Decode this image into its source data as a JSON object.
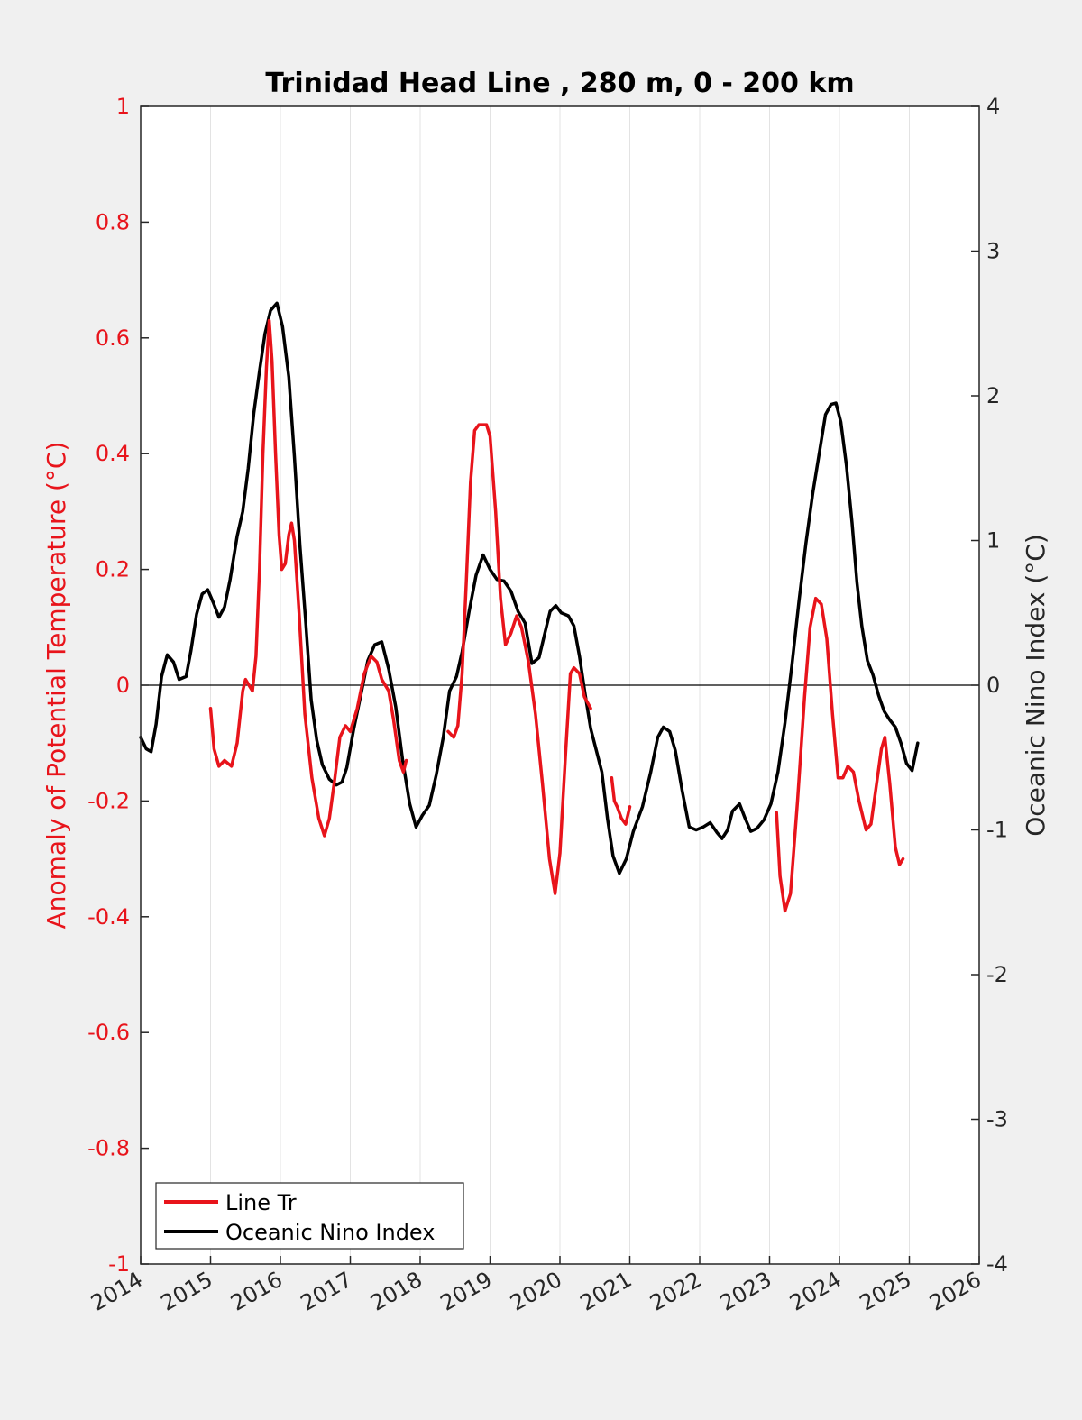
{
  "chart_data": {
    "type": "line",
    "title": "Trinidad Head Line , 280 m, 0 - 200 km",
    "x_ticks": [
      "2014",
      "2015",
      "2016",
      "2017",
      "2018",
      "2019",
      "2020",
      "2021",
      "2022",
      "2023",
      "2024",
      "2025",
      "2026"
    ],
    "xlim": [
      2014,
      2026
    ],
    "left_axis": {
      "label": "Anomaly of Potential Temperature (°C)",
      "ylim": [
        -1,
        1
      ],
      "ticks": [
        "1",
        "0.8",
        "0.6",
        "0.4",
        "0.2",
        "0",
        "-0.2",
        "-0.4",
        "-0.6",
        "-0.8",
        "-1"
      ],
      "color": "#e8141b"
    },
    "right_axis": {
      "label": "Oceanic Nino Index (°C)",
      "ylim": [
        -4,
        4
      ],
      "ticks": [
        "4",
        "3",
        "2",
        "1",
        "0",
        "-1",
        "-2",
        "-3",
        "-4"
      ],
      "color": "#262626"
    },
    "grid": "vertical",
    "legend_position": "bottom-left",
    "series": [
      {
        "name": "Line Tr",
        "axis": "left",
        "color": "#e8141b",
        "segments": [
          [
            [
              2015.0,
              -0.04
            ],
            [
              2015.05,
              -0.11
            ],
            [
              2015.12,
              -0.14
            ],
            [
              2015.2,
              -0.13
            ],
            [
              2015.3,
              -0.14
            ],
            [
              2015.38,
              -0.1
            ],
            [
              2015.46,
              -0.01
            ],
            [
              2015.5,
              0.01
            ],
            [
              2015.55,
              0.0
            ],
            [
              2015.6,
              -0.01
            ],
            [
              2015.65,
              0.05
            ],
            [
              2015.7,
              0.2
            ],
            [
              2015.75,
              0.4
            ],
            [
              2015.8,
              0.55
            ],
            [
              2015.84,
              0.63
            ],
            [
              2015.88,
              0.56
            ],
            [
              2015.93,
              0.4
            ],
            [
              2015.98,
              0.26
            ],
            [
              2016.02,
              0.2
            ],
            [
              2016.07,
              0.21
            ],
            [
              2016.12,
              0.26
            ],
            [
              2016.16,
              0.28
            ],
            [
              2016.2,
              0.25
            ],
            [
              2016.27,
              0.12
            ],
            [
              2016.35,
              -0.05
            ],
            [
              2016.45,
              -0.16
            ],
            [
              2016.55,
              -0.23
            ],
            [
              2016.63,
              -0.26
            ],
            [
              2016.7,
              -0.23
            ],
            [
              2016.78,
              -0.16
            ],
            [
              2016.85,
              -0.09
            ],
            [
              2016.93,
              -0.07
            ],
            [
              2017.0,
              -0.08
            ],
            [
              2017.1,
              -0.04
            ],
            [
              2017.2,
              0.02
            ],
            [
              2017.3,
              0.05
            ],
            [
              2017.38,
              0.04
            ],
            [
              2017.45,
              0.01
            ],
            [
              2017.55,
              -0.01
            ],
            [
              2017.62,
              -0.06
            ],
            [
              2017.7,
              -0.13
            ],
            [
              2017.76,
              -0.15
            ],
            [
              2017.8,
              -0.13
            ]
          ],
          [
            [
              2018.4,
              -0.08
            ],
            [
              2018.48,
              -0.09
            ],
            [
              2018.54,
              -0.07
            ],
            [
              2018.6,
              0.02
            ],
            [
              2018.66,
              0.18
            ],
            [
              2018.72,
              0.35
            ],
            [
              2018.78,
              0.44
            ],
            [
              2018.84,
              0.45
            ],
            [
              2018.9,
              0.45
            ],
            [
              2018.95,
              0.45
            ],
            [
              2019.0,
              0.43
            ],
            [
              2019.08,
              0.3
            ],
            [
              2019.15,
              0.15
            ],
            [
              2019.22,
              0.07
            ],
            [
              2019.3,
              0.09
            ],
            [
              2019.38,
              0.12
            ],
            [
              2019.45,
              0.1
            ],
            [
              2019.55,
              0.04
            ],
            [
              2019.65,
              -0.05
            ],
            [
              2019.75,
              -0.17
            ],
            [
              2019.85,
              -0.3
            ],
            [
              2019.93,
              -0.36
            ],
            [
              2020.0,
              -0.29
            ],
            [
              2020.08,
              -0.12
            ],
            [
              2020.15,
              0.02
            ],
            [
              2020.2,
              0.03
            ],
            [
              2020.28,
              0.02
            ],
            [
              2020.35,
              -0.02
            ],
            [
              2020.44,
              -0.04
            ]
          ],
          [
            [
              2020.74,
              -0.16
            ],
            [
              2020.78,
              -0.2
            ],
            [
              2020.82,
              -0.21
            ],
            [
              2020.88,
              -0.23
            ],
            [
              2020.94,
              -0.24
            ],
            [
              2021.0,
              -0.21
            ]
          ],
          [
            [
              2023.1,
              -0.22
            ],
            [
              2023.15,
              -0.33
            ],
            [
              2023.22,
              -0.39
            ],
            [
              2023.3,
              -0.36
            ],
            [
              2023.4,
              -0.2
            ],
            [
              2023.5,
              -0.02
            ],
            [
              2023.58,
              0.1
            ],
            [
              2023.66,
              0.15
            ],
            [
              2023.74,
              0.14
            ],
            [
              2023.82,
              0.08
            ],
            [
              2023.9,
              -0.05
            ],
            [
              2023.98,
              -0.16
            ],
            [
              2024.05,
              -0.16
            ],
            [
              2024.12,
              -0.14
            ],
            [
              2024.2,
              -0.15
            ],
            [
              2024.28,
              -0.2
            ],
            [
              2024.38,
              -0.25
            ],
            [
              2024.45,
              -0.24
            ],
            [
              2024.52,
              -0.18
            ],
            [
              2024.6,
              -0.11
            ],
            [
              2024.65,
              -0.09
            ],
            [
              2024.72,
              -0.17
            ],
            [
              2024.8,
              -0.28
            ],
            [
              2024.86,
              -0.31
            ],
            [
              2024.91,
              -0.3
            ]
          ]
        ]
      },
      {
        "name": "Oceanic Nino Index",
        "axis": "right",
        "color": "#000000",
        "segments": [
          [
            [
              2014.0,
              -0.36
            ],
            [
              2014.08,
              -0.44
            ],
            [
              2014.15,
              -0.46
            ],
            [
              2014.22,
              -0.27
            ],
            [
              2014.3,
              0.06
            ],
            [
              2014.38,
              0.21
            ],
            [
              2014.47,
              0.16
            ],
            [
              2014.55,
              0.04
            ],
            [
              2014.65,
              0.06
            ],
            [
              2014.72,
              0.24
            ],
            [
              2014.8,
              0.49
            ],
            [
              2014.88,
              0.63
            ],
            [
              2014.96,
              0.66
            ],
            [
              2015.04,
              0.57
            ],
            [
              2015.12,
              0.47
            ],
            [
              2015.2,
              0.54
            ],
            [
              2015.28,
              0.73
            ],
            [
              2015.38,
              1.03
            ],
            [
              2015.46,
              1.2
            ],
            [
              2015.54,
              1.5
            ],
            [
              2015.62,
              1.88
            ],
            [
              2015.7,
              2.17
            ],
            [
              2015.78,
              2.43
            ],
            [
              2015.86,
              2.59
            ],
            [
              2015.95,
              2.64
            ],
            [
              2016.03,
              2.48
            ],
            [
              2016.12,
              2.13
            ],
            [
              2016.2,
              1.58
            ],
            [
              2016.28,
              0.96
            ],
            [
              2016.36,
              0.45
            ],
            [
              2016.44,
              -0.1
            ],
            [
              2016.52,
              -0.38
            ],
            [
              2016.6,
              -0.55
            ],
            [
              2016.7,
              -0.65
            ],
            [
              2016.8,
              -0.69
            ],
            [
              2016.88,
              -0.67
            ],
            [
              2016.95,
              -0.57
            ],
            [
              2017.05,
              -0.3
            ],
            [
              2017.15,
              -0.07
            ],
            [
              2017.25,
              0.17
            ],
            [
              2017.35,
              0.28
            ],
            [
              2017.45,
              0.3
            ],
            [
              2017.55,
              0.11
            ],
            [
              2017.65,
              -0.15
            ],
            [
              2017.75,
              -0.52
            ],
            [
              2017.85,
              -0.82
            ],
            [
              2017.94,
              -0.98
            ],
            [
              2018.03,
              -0.9
            ],
            [
              2018.13,
              -0.83
            ],
            [
              2018.23,
              -0.62
            ],
            [
              2018.33,
              -0.36
            ],
            [
              2018.42,
              -0.04
            ],
            [
              2018.52,
              0.06
            ],
            [
              2018.6,
              0.23
            ],
            [
              2018.7,
              0.51
            ],
            [
              2018.8,
              0.76
            ],
            [
              2018.9,
              0.9
            ],
            [
              2019.0,
              0.8
            ],
            [
              2019.1,
              0.73
            ],
            [
              2019.2,
              0.72
            ],
            [
              2019.3,
              0.65
            ],
            [
              2019.4,
              0.51
            ],
            [
              2019.5,
              0.43
            ],
            [
              2019.6,
              0.15
            ],
            [
              2019.7,
              0.19
            ],
            [
              2019.78,
              0.35
            ],
            [
              2019.86,
              0.51
            ],
            [
              2019.94,
              0.55
            ],
            [
              2020.02,
              0.5
            ],
            [
              2020.12,
              0.48
            ],
            [
              2020.2,
              0.41
            ],
            [
              2020.28,
              0.2
            ],
            [
              2020.36,
              -0.06
            ],
            [
              2020.44,
              -0.3
            ],
            [
              2020.52,
              -0.45
            ],
            [
              2020.6,
              -0.6
            ],
            [
              2020.68,
              -0.92
            ],
            [
              2020.76,
              -1.18
            ],
            [
              2020.85,
              -1.3
            ],
            [
              2020.95,
              -1.2
            ],
            [
              2021.05,
              -1.01
            ],
            [
              2021.18,
              -0.84
            ],
            [
              2021.3,
              -0.6
            ],
            [
              2021.4,
              -0.36
            ],
            [
              2021.48,
              -0.29
            ],
            [
              2021.57,
              -0.32
            ],
            [
              2021.65,
              -0.45
            ],
            [
              2021.75,
              -0.73
            ],
            [
              2021.85,
              -0.98
            ],
            [
              2021.95,
              -1.0
            ],
            [
              2022.05,
              -0.98
            ],
            [
              2022.15,
              -0.95
            ],
            [
              2022.25,
              -1.02
            ],
            [
              2022.32,
              -1.06
            ],
            [
              2022.4,
              -1.0
            ],
            [
              2022.47,
              -0.87
            ],
            [
              2022.57,
              -0.82
            ],
            [
              2022.65,
              -0.92
            ],
            [
              2022.73,
              -1.01
            ],
            [
              2022.82,
              -0.99
            ],
            [
              2022.92,
              -0.93
            ],
            [
              2023.02,
              -0.82
            ],
            [
              2023.12,
              -0.6
            ],
            [
              2023.22,
              -0.26
            ],
            [
              2023.32,
              0.14
            ],
            [
              2023.42,
              0.58
            ],
            [
              2023.52,
              0.98
            ],
            [
              2023.62,
              1.33
            ],
            [
              2023.72,
              1.63
            ],
            [
              2023.8,
              1.87
            ],
            [
              2023.88,
              1.94
            ],
            [
              2023.95,
              1.95
            ],
            [
              2024.02,
              1.82
            ],
            [
              2024.1,
              1.52
            ],
            [
              2024.18,
              1.12
            ],
            [
              2024.25,
              0.71
            ],
            [
              2024.32,
              0.41
            ],
            [
              2024.4,
              0.17
            ],
            [
              2024.48,
              0.07
            ],
            [
              2024.56,
              -0.07
            ],
            [
              2024.64,
              -0.18
            ],
            [
              2024.72,
              -0.24
            ],
            [
              2024.8,
              -0.29
            ],
            [
              2024.88,
              -0.4
            ],
            [
              2024.96,
              -0.54
            ],
            [
              2025.04,
              -0.59
            ],
            [
              2025.12,
              -0.4
            ]
          ]
        ]
      }
    ]
  }
}
